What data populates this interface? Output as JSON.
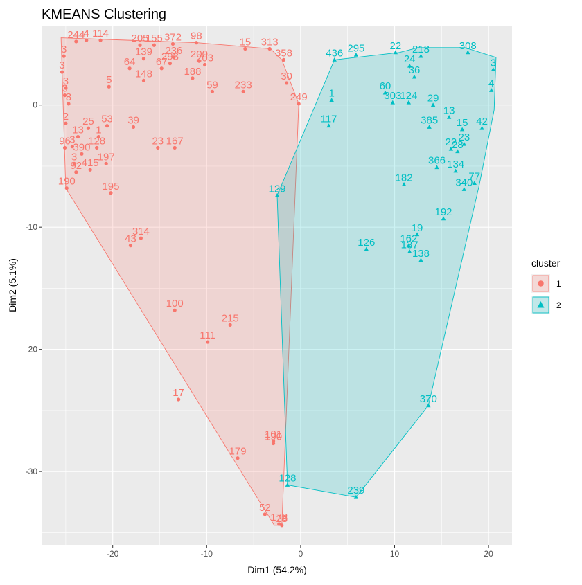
{
  "chart_data": {
    "type": "scatter",
    "title": "KMEANS Clustering",
    "xlabel": "Dim1 (54.2%)",
    "ylabel": "Dim2 (5.1%)",
    "xlim": [
      -27.5,
      22.5
    ],
    "ylim": [
      -36,
      6.5
    ],
    "xticks": [
      -20,
      -10,
      0,
      10,
      20
    ],
    "yticks": [
      0,
      -10,
      -20,
      -30
    ],
    "grid": true,
    "legend": {
      "title": "cluster",
      "position": "right",
      "entries": [
        "1",
        "2"
      ]
    },
    "colors": {
      "1": "#F8766D",
      "2": "#00BFC4",
      "panel": "#EBEBEB",
      "grid": "#FFFFFF"
    },
    "series": [
      {
        "name": "1",
        "hull": [
          [
            -25.5,
            5.5
          ],
          [
            -11,
            5.1
          ],
          [
            -3.2,
            4.6
          ],
          [
            -2,
            3.7
          ],
          [
            -0.2,
            0.1
          ],
          [
            -2,
            -34.4
          ],
          [
            -2.8,
            -34.4
          ],
          [
            -25,
            -6.8
          ]
        ],
        "points": [
          {
            "label": "372",
            "x": -13.6,
            "y": 5.0
          },
          {
            "label": "98",
            "x": -11.1,
            "y": 5.1
          },
          {
            "label": "15",
            "x": -5.9,
            "y": 4.6
          },
          {
            "label": "313",
            "x": -3.3,
            "y": 4.6
          },
          {
            "label": "358",
            "x": -1.8,
            "y": 3.7
          },
          {
            "label": "205",
            "x": -17.1,
            "y": 4.9
          },
          {
            "label": "155",
            "x": -15.6,
            "y": 4.9
          },
          {
            "label": "139",
            "x": -16.7,
            "y": 3.8
          },
          {
            "label": "236",
            "x": -13.5,
            "y": 3.9
          },
          {
            "label": "293",
            "x": -13.9,
            "y": 3.4
          },
          {
            "label": "200",
            "x": -10.8,
            "y": 3.6
          },
          {
            "label": "203",
            "x": -10.2,
            "y": 3.3
          },
          {
            "label": "188",
            "x": -11.5,
            "y": 2.2
          },
          {
            "label": "67",
            "x": -14.8,
            "y": 3.0
          },
          {
            "label": "64",
            "x": -18.2,
            "y": 3.0
          },
          {
            "label": "148",
            "x": -16.7,
            "y": 2.0
          },
          {
            "label": "59",
            "x": -9.4,
            "y": 1.1
          },
          {
            "label": "233",
            "x": -6.1,
            "y": 1.1
          },
          {
            "label": "30",
            "x": -1.5,
            "y": 1.8
          },
          {
            "label": "249",
            "x": -0.2,
            "y": 0.1
          },
          {
            "label": "39",
            "x": -17.8,
            "y": -1.8
          },
          {
            "label": "23",
            "x": -15.2,
            "y": -3.5
          },
          {
            "label": "167",
            "x": -13.4,
            "y": -3.5
          },
          {
            "label": "197",
            "x": -20.7,
            "y": -4.8
          },
          {
            "label": "415",
            "x": -22.4,
            "y": -5.3
          },
          {
            "label": "195",
            "x": -20.2,
            "y": -7.2
          },
          {
            "label": "190",
            "x": -24.9,
            "y": -6.8
          },
          {
            "label": "96",
            "x": -25.1,
            "y": -3.5
          },
          {
            "label": "314",
            "x": -17.0,
            "y": -10.9
          },
          {
            "label": "43",
            "x": -18.1,
            "y": -11.5
          },
          {
            "label": "100",
            "x": -13.4,
            "y": -16.8
          },
          {
            "label": "215",
            "x": -7.5,
            "y": -18.0
          },
          {
            "label": "111",
            "x": -9.9,
            "y": -19.4
          },
          {
            "label": "17",
            "x": -13.0,
            "y": -24.1
          },
          {
            "label": "101",
            "x": -2.9,
            "y": -27.5
          },
          {
            "label": "190",
            "x": -2.9,
            "y": -27.7
          },
          {
            "label": "179",
            "x": -6.7,
            "y": -28.9
          },
          {
            "label": "52",
            "x": -3.8,
            "y": -33.5
          },
          {
            "label": "178",
            "x": -2.3,
            "y": -34.3
          },
          {
            "label": "28",
            "x": -2.0,
            "y": -34.4
          },
          {
            "label": "244",
            "x": -23.9,
            "y": 5.2
          },
          {
            "label": "4",
            "x": -22.8,
            "y": 5.3
          },
          {
            "label": "114",
            "x": -21.3,
            "y": 5.3
          },
          {
            "label": "3",
            "x": -25.2,
            "y": 4.0
          },
          {
            "label": "3",
            "x": -25.4,
            "y": 2.7
          },
          {
            "label": "3",
            "x": -25.0,
            "y": 1.4
          },
          {
            "label": "3",
            "x": -25.1,
            "y": 0.8
          },
          {
            "label": "8",
            "x": -24.7,
            "y": 0.1
          },
          {
            "label": "5",
            "x": -20.4,
            "y": 1.5
          },
          {
            "label": "2",
            "x": -25.0,
            "y": -1.5
          },
          {
            "label": "25",
            "x": -22.6,
            "y": -1.9
          },
          {
            "label": "53",
            "x": -20.6,
            "y": -1.7
          },
          {
            "label": "3",
            "x": -24.3,
            "y": -3.4
          },
          {
            "label": "3",
            "x": -24.1,
            "y": -4.8
          },
          {
            "label": "390",
            "x": -23.3,
            "y": -4.0
          },
          {
            "label": "128",
            "x": -21.7,
            "y": -3.5
          },
          {
            "label": "13",
            "x": -23.7,
            "y": -2.6
          },
          {
            "label": "92",
            "x": -23.9,
            "y": -5.5
          },
          {
            "label": "1",
            "x": -21.5,
            "y": -2.6
          }
        ]
      },
      {
        "name": "2",
        "hull": [
          [
            3.6,
            3.7
          ],
          [
            10.5,
            4.3
          ],
          [
            12.5,
            4.7
          ],
          [
            17.5,
            4.7
          ],
          [
            20.8,
            3.9
          ],
          [
            20.6,
            -0.4
          ],
          [
            19.0,
            -6.6
          ],
          [
            13.6,
            -24.6
          ],
          [
            5.9,
            -32.1
          ],
          [
            -1.4,
            -31.1
          ],
          [
            -2.5,
            -7.4
          ]
        ],
        "points": [
          {
            "label": "436",
            "x": 3.6,
            "y": 3.7
          },
          {
            "label": "295",
            "x": 5.9,
            "y": 4.1
          },
          {
            "label": "22",
            "x": 10.1,
            "y": 4.3
          },
          {
            "label": "218",
            "x": 12.8,
            "y": 4.0
          },
          {
            "label": "1",
            "x": 3.3,
            "y": 0.4
          },
          {
            "label": "117",
            "x": 3.0,
            "y": -1.7
          },
          {
            "label": "60",
            "x": 9.0,
            "y": 1.0
          },
          {
            "label": "303",
            "x": 9.8,
            "y": 0.2
          },
          {
            "label": "124",
            "x": 11.5,
            "y": 0.2
          },
          {
            "label": "385",
            "x": 13.7,
            "y": -1.8
          },
          {
            "label": "42",
            "x": 19.3,
            "y": -1.9
          },
          {
            "label": "366",
            "x": 14.5,
            "y": -5.1
          },
          {
            "label": "134",
            "x": 16.5,
            "y": -5.4
          },
          {
            "label": "77",
            "x": 18.5,
            "y": -6.4
          },
          {
            "label": "340",
            "x": 17.4,
            "y": -6.9
          },
          {
            "label": "182",
            "x": 11.0,
            "y": -6.5
          },
          {
            "label": "129",
            "x": -2.5,
            "y": -7.4
          },
          {
            "label": "192",
            "x": 15.2,
            "y": -9.3
          },
          {
            "label": "19",
            "x": 12.4,
            "y": -10.6
          },
          {
            "label": "162",
            "x": 11.5,
            "y": -11.5
          },
          {
            "label": "137",
            "x": 11.6,
            "y": -12.0
          },
          {
            "label": "138",
            "x": 12.8,
            "y": -12.7
          },
          {
            "label": "126",
            "x": 7.0,
            "y": -11.8
          },
          {
            "label": "370",
            "x": 13.6,
            "y": -24.6
          },
          {
            "label": "128",
            "x": -1.4,
            "y": -31.1
          },
          {
            "label": "239",
            "x": 5.9,
            "y": -32.1
          },
          {
            "label": "308",
            "x": 17.8,
            "y": 4.3
          },
          {
            "label": "24",
            "x": 11.6,
            "y": 3.2
          },
          {
            "label": "36",
            "x": 12.1,
            "y": 2.3
          },
          {
            "label": "29",
            "x": 14.1,
            "y": 0.0
          },
          {
            "label": "13",
            "x": 15.8,
            "y": -1.0
          },
          {
            "label": "23",
            "x": 17.4,
            "y": -3.2
          },
          {
            "label": "28",
            "x": 16.7,
            "y": -3.8
          },
          {
            "label": "15",
            "x": 17.2,
            "y": -2.0
          },
          {
            "label": "22",
            "x": 16.0,
            "y": -3.6
          },
          {
            "label": "3",
            "x": 20.5,
            "y": 2.9
          },
          {
            "label": "4",
            "x": 20.3,
            "y": 1.2
          }
        ]
      }
    ]
  }
}
